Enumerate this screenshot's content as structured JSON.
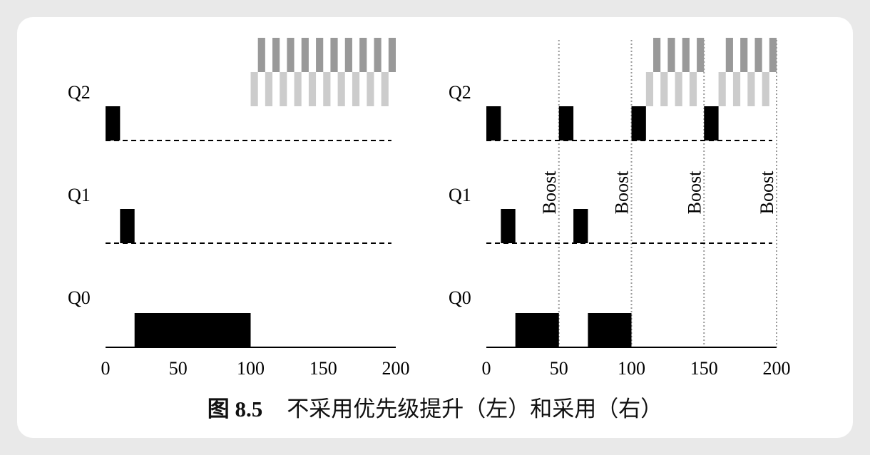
{
  "figure": {
    "caption_number": "图 8.5",
    "caption_text": "不采用优先级提升（左）和采用（右）"
  },
  "chart_data": [
    {
      "type": "timeline",
      "panel": "left",
      "queues": [
        "Q2",
        "Q1",
        "Q0"
      ],
      "x_ticks": [
        "0",
        "50",
        "100",
        "150",
        "200"
      ],
      "xlim": [
        0,
        200
      ],
      "job_segments": [
        {
          "queue": "Q2",
          "start": 0,
          "end": 10
        },
        {
          "queue": "Q1",
          "start": 10,
          "end": 20
        },
        {
          "queue": "Q0",
          "start": 20,
          "end": 100
        }
      ],
      "interactive_jobs": [
        {
          "queue": "Q2",
          "start": 100,
          "end": 200,
          "row": "lower"
        },
        {
          "queue": "Q2",
          "start": 105,
          "end": 200,
          "row": "upper"
        }
      ],
      "boosts": []
    },
    {
      "type": "timeline",
      "panel": "right",
      "queues": [
        "Q2",
        "Q1",
        "Q0"
      ],
      "x_ticks": [
        "0",
        "50",
        "100",
        "150",
        "200"
      ],
      "xlim": [
        0,
        200
      ],
      "job_segments": [
        {
          "queue": "Q2",
          "start": 0,
          "end": 10
        },
        {
          "queue": "Q1",
          "start": 10,
          "end": 20
        },
        {
          "queue": "Q0",
          "start": 20,
          "end": 50
        },
        {
          "queue": "Q2",
          "start": 50,
          "end": 60
        },
        {
          "queue": "Q1",
          "start": 60,
          "end": 70
        },
        {
          "queue": "Q0",
          "start": 70,
          "end": 100
        },
        {
          "queue": "Q2",
          "start": 100,
          "end": 110
        },
        {
          "queue": "Q2",
          "start": 150,
          "end": 160
        }
      ],
      "interactive_jobs": [
        {
          "queue": "Q2",
          "start": 110,
          "end": 145,
          "row": "lower"
        },
        {
          "queue": "Q2",
          "start": 115,
          "end": 150,
          "row": "upper"
        },
        {
          "queue": "Q2",
          "start": 160,
          "end": 195,
          "row": "lower"
        },
        {
          "queue": "Q2",
          "start": 165,
          "end": 200,
          "row": "upper"
        }
      ],
      "boosts": [
        50,
        100,
        150,
        200
      ],
      "boost_label": "Boost"
    }
  ],
  "colors": {
    "job": "#000000",
    "interactive_dark": "#999999",
    "interactive_light": "#cccccc",
    "boost_line": "#999999"
  }
}
